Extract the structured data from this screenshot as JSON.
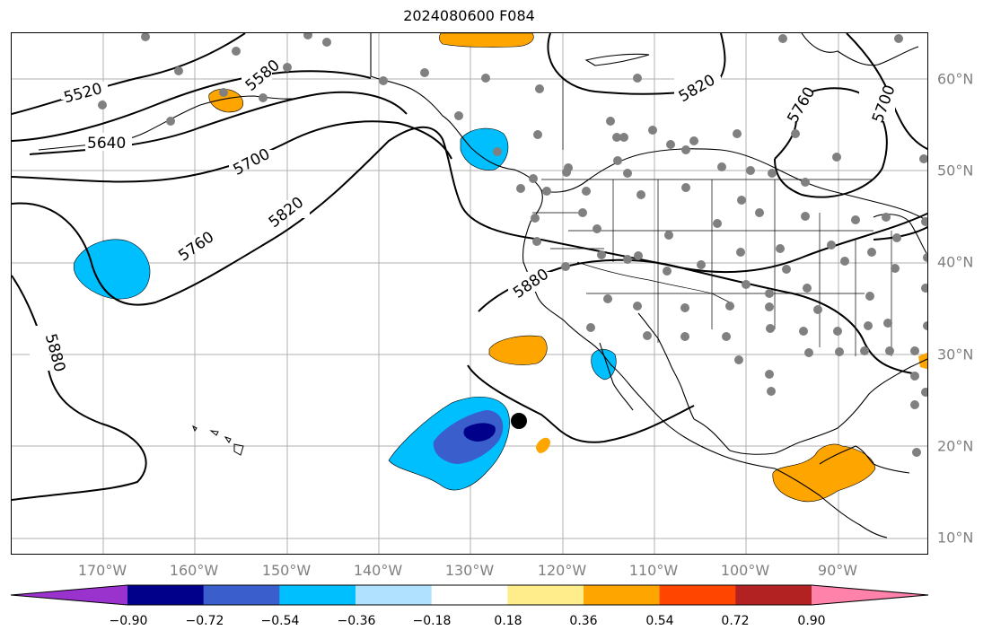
{
  "title": "2024080600 F084",
  "lon_labels": [
    "170°W",
    "160°W",
    "150°W",
    "140°W",
    "130°W",
    "120°W",
    "110°W",
    "100°W",
    "90°W"
  ],
  "lat_labels": [
    "60°N",
    "50°N",
    "40°N",
    "30°N",
    "20°N",
    "10°N"
  ],
  "colorbar": {
    "colors": [
      "#9a32cd",
      "#00008b",
      "#3a5fcd",
      "#00bfff",
      "#b0e2ff",
      "#ffffff",
      "#ffec8b",
      "#ffa500",
      "#ff4500",
      "#b22222",
      "#ff82ab"
    ],
    "labels": [
      "−0.90",
      "−0.72",
      "−0.54",
      "−0.36",
      "−0.18",
      "0.18",
      "0.36",
      "0.54",
      "0.72",
      "0.90"
    ]
  },
  "contour_labels": [
    "5520",
    "5580",
    "5640",
    "5700",
    "5760",
    "5820",
    "5880",
    "5820",
    "5760",
    "5700",
    "5880"
  ],
  "colors": {
    "land_line": "#000000",
    "grid": "#b0b0b0",
    "station": "#808080",
    "axis_text": "#808080"
  }
}
